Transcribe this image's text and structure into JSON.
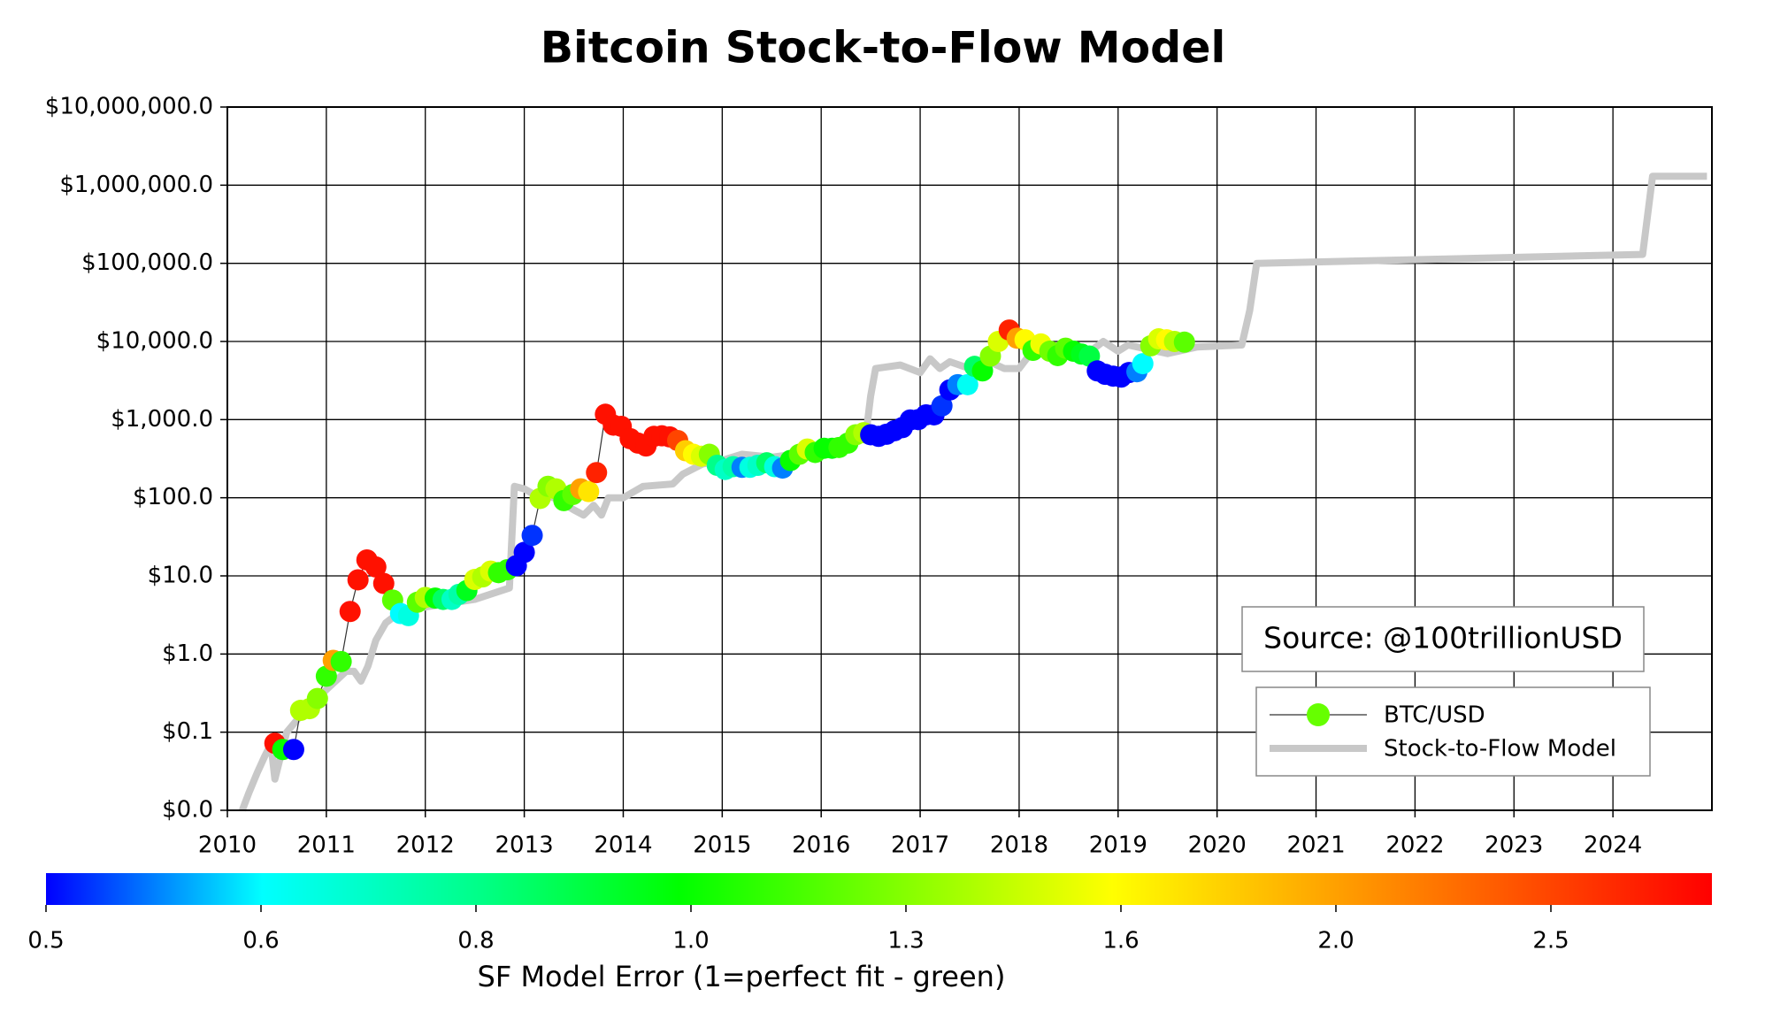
{
  "chart_data": {
    "type": "scatter",
    "title": "Bitcoin Stock-to-Flow Model",
    "annotation": "Source: @100trillionUSD",
    "log_y": true,
    "grid": true,
    "legend": "lower right",
    "xlim": [
      2010,
      2025
    ],
    "xticks": [
      2010,
      2011,
      2012,
      2013,
      2014,
      2015,
      2016,
      2017,
      2018,
      2019,
      2020,
      2021,
      2022,
      2023,
      2024
    ],
    "ylim": [
      0.01,
      10000000
    ],
    "yticks": [
      {
        "value": 0.01,
        "label": "$0.0"
      },
      {
        "value": 0.1,
        "label": "$0.1"
      },
      {
        "value": 1,
        "label": "$1.0"
      },
      {
        "value": 10,
        "label": "$10.0"
      },
      {
        "value": 100,
        "label": "$100.0"
      },
      {
        "value": 1000,
        "label": "$1,000.0"
      },
      {
        "value": 10000,
        "label": "$10,000.0"
      },
      {
        "value": 100000,
        "label": "$100,000.0"
      },
      {
        "value": 1000000,
        "label": "$1,000,000.0"
      },
      {
        "value": 10000000,
        "label": "$10,000,000.0"
      }
    ],
    "colorbar": {
      "label": "SF Model Error (1=perfect fit - green)",
      "lim": [
        0.5,
        2.9
      ],
      "ticks": [
        0.5,
        0.6,
        0.8,
        {
          "value": 1,
          "label": "1.0"
        },
        1.3,
        1.6,
        {
          "value": 2,
          "label": "2.0"
        },
        2.5
      ]
    },
    "series": [
      {
        "name": "BTC/USD",
        "color": "#66ff00",
        "x": [
          2010.48,
          2010.56,
          2010.67,
          2010.74,
          2010.83,
          2010.91,
          2011.0,
          2011.07,
          2011.15,
          2011.24,
          2011.32,
          2011.41,
          2011.5,
          2011.58,
          2011.67,
          2011.75,
          2011.83,
          2011.92,
          2012.0,
          2012.1,
          2012.18,
          2012.27,
          2012.34,
          2012.42,
          2012.5,
          2012.58,
          2012.66,
          2012.74,
          2012.83,
          2012.92,
          2013.0,
          2013.08,
          2013.16,
          2013.24,
          2013.32,
          2013.4,
          2013.49,
          2013.57,
          2013.65,
          2013.73,
          2013.82,
          2013.9,
          2013.98,
          2014.07,
          2014.15,
          2014.23,
          2014.31,
          2014.39,
          2014.47,
          2014.55,
          2014.63,
          2014.71,
          2014.79,
          2014.87,
          2014.95,
          2015.03,
          2015.11,
          2015.2,
          2015.28,
          2015.36,
          2015.45,
          2015.53,
          2015.61,
          2015.69,
          2015.78,
          2015.86,
          2015.94,
          2016.03,
          2016.11,
          2016.18,
          2016.27,
          2016.35,
          2016.43,
          2016.5,
          2016.58,
          2016.66,
          2016.74,
          2016.82,
          2016.9,
          2016.98,
          2017.06,
          2017.14,
          2017.22,
          2017.3,
          2017.38,
          2017.48,
          2017.55,
          2017.63,
          2017.71,
          2017.79,
          2017.9,
          2017.98,
          2018.06,
          2018.14,
          2018.22,
          2018.31,
          2018.39,
          2018.47,
          2018.55,
          2018.63,
          2018.71,
          2018.79,
          2018.87,
          2018.95,
          2019.03,
          2019.11,
          2019.19,
          2019.25,
          2019.33,
          2019.41,
          2019.49,
          2019.57,
          2019.67
        ],
        "values": [
          0.072,
          0.06,
          0.06,
          0.19,
          0.2,
          0.27,
          0.52,
          0.83,
          0.8,
          3.5,
          8.9,
          16,
          13,
          8,
          4.9,
          3.3,
          3.1,
          4.6,
          5.3,
          5.2,
          5.0,
          5.0,
          5.8,
          6.5,
          9.0,
          9.7,
          11.5,
          11,
          12,
          13.5,
          20,
          33,
          98,
          140,
          130,
          92,
          110,
          130,
          120,
          210,
          1170,
          850,
          820,
          570,
          500,
          460,
          610,
          620,
          600,
          540,
          400,
          360,
          340,
          360,
          260,
          230,
          250,
          245,
          245,
          260,
          280,
          250,
          240,
          300,
          360,
          420,
          380,
          430,
          430,
          440,
          500,
          640,
          680,
          640,
          610,
          650,
          720,
          790,
          990,
          1000,
          1150,
          1150,
          1500,
          2400,
          2800,
          2800,
          4800,
          4200,
          6500,
          10000,
          14000,
          11000,
          10500,
          7700,
          9300,
          7500,
          6600,
          8200,
          7500,
          6900,
          6500,
          4200,
          3800,
          3600,
          3500,
          4000,
          4100,
          5200,
          8800,
          10800,
          10500,
          10000,
          9800
        ],
        "error": [
          2.8,
          1.0,
          0.5,
          1.4,
          1.4,
          1.3,
          1.1,
          2.0,
          1.1,
          2.8,
          2.8,
          2.8,
          2.8,
          2.8,
          1.2,
          0.6,
          0.65,
          1.2,
          1.4,
          1.0,
          0.85,
          0.7,
          0.75,
          0.95,
          1.5,
          1.4,
          1.5,
          1.1,
          1.1,
          0.5,
          0.5,
          0.52,
          1.4,
          1.3,
          1.4,
          1.1,
          1.2,
          2.0,
          1.7,
          2.7,
          2.8,
          2.8,
          2.8,
          2.8,
          2.8,
          2.8,
          2.8,
          2.8,
          2.8,
          2.5,
          1.8,
          1.6,
          1.5,
          1.3,
          0.8,
          0.7,
          0.75,
          0.55,
          0.65,
          0.7,
          0.85,
          0.65,
          0.55,
          1.0,
          1.2,
          1.5,
          1.1,
          1.0,
          1.0,
          1.1,
          1.1,
          1.3,
          1.4,
          0.5,
          0.5,
          0.5,
          0.5,
          0.5,
          0.5,
          0.5,
          0.5,
          0.5,
          0.52,
          0.5,
          0.55,
          0.62,
          0.85,
          1.0,
          1.3,
          1.5,
          2.7,
          2.0,
          1.6,
          1.1,
          1.55,
          1.25,
          1.1,
          1.2,
          1.0,
          0.95,
          0.9,
          0.5,
          0.5,
          0.5,
          0.5,
          0.5,
          0.55,
          0.6,
          1.3,
          1.5,
          1.6,
          1.4,
          1.2
        ]
      },
      {
        "name": "Stock-to-Flow Model",
        "color": "#c8c8c8",
        "x": [
          2010.15,
          2010.22,
          2010.3,
          2010.38,
          2010.44,
          2010.48,
          2010.6,
          2010.8,
          2011.0,
          2011.2,
          2011.28,
          2011.35,
          2011.42,
          2011.5,
          2011.6,
          2011.75,
          2012.0,
          2012.5,
          2012.85,
          2012.9,
          2013.0,
          2013.1,
          2013.3,
          2013.5,
          2013.6,
          2013.7,
          2013.78,
          2013.85,
          2014.0,
          2014.2,
          2014.5,
          2014.6,
          2014.8,
          2015.0,
          2015.2,
          2015.5,
          2016.0,
          2016.3,
          2016.45,
          2016.5,
          2016.55,
          2016.8,
          2017.0,
          2017.1,
          2017.2,
          2017.3,
          2017.5,
          2017.7,
          2017.85,
          2018.0,
          2018.15,
          2018.5,
          2018.75,
          2018.85,
          2019.0,
          2019.1,
          2019.5,
          2019.8,
          2020.25,
          2020.33,
          2020.4,
          2024.3,
          2024.4,
          2024.95
        ],
        "values": [
          0.01,
          0.017,
          0.03,
          0.05,
          0.07,
          0.025,
          0.1,
          0.2,
          0.35,
          0.6,
          0.6,
          0.45,
          0.7,
          1.5,
          2.5,
          3.5,
          4,
          5,
          7,
          140,
          130,
          110,
          100,
          70,
          60,
          80,
          60,
          100,
          100,
          140,
          150,
          200,
          270,
          300,
          360,
          330,
          400,
          480,
          600,
          2000,
          4500,
          5000,
          4000,
          6000,
          4500,
          5500,
          4500,
          5500,
          4500,
          4500,
          8000,
          7000,
          8000,
          10000,
          7500,
          9000,
          7000,
          8500,
          9000,
          25000,
          100000,
          130000,
          1300000,
          1300000
        ]
      }
    ]
  }
}
